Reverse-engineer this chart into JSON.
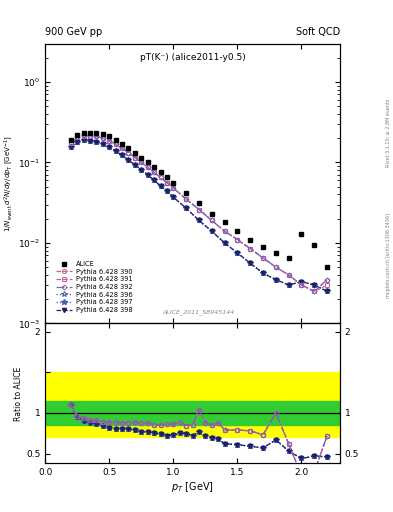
{
  "title_left": "900 GeV pp",
  "title_right": "Soft QCD",
  "plot_title": "pT(K⁻) (alice2011-y0.5)",
  "watermark": "ALICE_2011_S8945144",
  "right_label_top": "Rivet 3.1.10; ≥ 2.8M events",
  "right_label_bottom": "mcplots.cern.ch [arXiv:1306.3436]",
  "ylabel_top": "1/N_{event} d²N/dy/dp_T [GeV⁻¹]",
  "ylabel_bottom": "Ratio to ALICE",
  "xlabel": "p_T [GeV]",
  "xlim": [
    0,
    2.3
  ],
  "alice_pt": [
    0.2,
    0.25,
    0.3,
    0.35,
    0.4,
    0.45,
    0.5,
    0.55,
    0.6,
    0.65,
    0.7,
    0.75,
    0.8,
    0.85,
    0.9,
    0.95,
    1.0,
    1.1,
    1.2,
    1.3,
    1.4,
    1.5,
    1.6,
    1.7,
    1.8,
    1.9,
    2.0,
    2.1,
    2.2
  ],
  "alice_val": [
    0.19,
    0.22,
    0.23,
    0.235,
    0.23,
    0.225,
    0.21,
    0.19,
    0.17,
    0.15,
    0.13,
    0.115,
    0.1,
    0.088,
    0.076,
    0.065,
    0.056,
    0.042,
    0.031,
    0.023,
    0.018,
    0.014,
    0.011,
    0.009,
    0.0075,
    0.0065,
    0.013,
    0.0095,
    0.005
  ],
  "pythia_pt": [
    0.2,
    0.25,
    0.3,
    0.35,
    0.4,
    0.45,
    0.5,
    0.55,
    0.6,
    0.65,
    0.7,
    0.75,
    0.8,
    0.85,
    0.9,
    0.95,
    1.0,
    1.1,
    1.2,
    1.3,
    1.4,
    1.5,
    1.6,
    1.7,
    1.8,
    1.9,
    2.0,
    2.1,
    2.2
  ],
  "p390_val": [
    0.175,
    0.205,
    0.215,
    0.215,
    0.21,
    0.2,
    0.185,
    0.168,
    0.15,
    0.132,
    0.115,
    0.1,
    0.087,
    0.075,
    0.065,
    0.056,
    0.048,
    0.035,
    0.026,
    0.019,
    0.014,
    0.011,
    0.0085,
    0.0065,
    0.005,
    0.004,
    0.003,
    0.0025,
    0.0035
  ],
  "p391_val": [
    0.175,
    0.205,
    0.215,
    0.215,
    0.21,
    0.2,
    0.185,
    0.168,
    0.15,
    0.132,
    0.115,
    0.1,
    0.087,
    0.075,
    0.065,
    0.056,
    0.048,
    0.035,
    0.026,
    0.019,
    0.014,
    0.011,
    0.0085,
    0.0065,
    0.005,
    0.004,
    0.003,
    0.0025,
    0.003
  ],
  "p392_val": [
    0.175,
    0.205,
    0.215,
    0.215,
    0.21,
    0.2,
    0.185,
    0.168,
    0.15,
    0.132,
    0.115,
    0.1,
    0.087,
    0.075,
    0.065,
    0.056,
    0.048,
    0.035,
    0.026,
    0.019,
    0.014,
    0.011,
    0.0085,
    0.0065,
    0.005,
    0.004,
    0.003,
    0.0025,
    0.0035
  ],
  "p396_val": [
    0.155,
    0.18,
    0.19,
    0.185,
    0.18,
    0.168,
    0.155,
    0.138,
    0.122,
    0.107,
    0.093,
    0.081,
    0.07,
    0.06,
    0.051,
    0.044,
    0.037,
    0.027,
    0.019,
    0.014,
    0.01,
    0.0075,
    0.0056,
    0.0042,
    0.0035,
    0.003,
    0.0033,
    0.003,
    0.0025
  ],
  "p397_val": [
    0.155,
    0.18,
    0.19,
    0.185,
    0.18,
    0.168,
    0.155,
    0.138,
    0.122,
    0.107,
    0.093,
    0.081,
    0.07,
    0.06,
    0.051,
    0.044,
    0.037,
    0.027,
    0.019,
    0.014,
    0.01,
    0.0075,
    0.0056,
    0.0042,
    0.0035,
    0.003,
    0.0033,
    0.003,
    0.0025
  ],
  "p398_val": [
    0.155,
    0.18,
    0.19,
    0.185,
    0.18,
    0.168,
    0.155,
    0.138,
    0.122,
    0.107,
    0.093,
    0.081,
    0.07,
    0.06,
    0.051,
    0.044,
    0.037,
    0.027,
    0.019,
    0.014,
    0.01,
    0.0075,
    0.0056,
    0.0042,
    0.0035,
    0.003,
    0.0033,
    0.003,
    0.0025
  ],
  "color_390": "#c060a0",
  "color_391": "#c060a0",
  "color_392": "#8060b0",
  "color_396": "#4060b0",
  "color_397": "#4060b0",
  "color_398": "#202060",
  "band_yellow": [
    0.7,
    1.5
  ],
  "band_green": [
    0.85,
    1.15
  ],
  "ratio_upper_pt": [
    0.2,
    0.25,
    0.3,
    0.35,
    0.4,
    0.45,
    0.5,
    0.55,
    0.6,
    0.65,
    0.7,
    0.75,
    0.8,
    0.85,
    0.9,
    0.95,
    1.0,
    1.05,
    1.1,
    1.15,
    1.2,
    1.25,
    1.3,
    1.35,
    1.4,
    1.5,
    1.6,
    1.7,
    1.8,
    1.9,
    2.0,
    2.1,
    2.2
  ],
  "ratio_upper": [
    1.1,
    0.96,
    0.935,
    0.915,
    0.91,
    0.89,
    0.885,
    0.885,
    0.88,
    0.88,
    0.885,
    0.875,
    0.875,
    0.855,
    0.855,
    0.862,
    0.86,
    0.89,
    0.845,
    0.855,
    1.04,
    0.88,
    0.85,
    0.88,
    0.79,
    0.79,
    0.78,
    0.73,
    1.0,
    0.62,
    0.23,
    0.27,
    0.72
  ],
  "ratio_lower_pt": [
    0.2,
    0.25,
    0.3,
    0.35,
    0.4,
    0.45,
    0.5,
    0.55,
    0.6,
    0.65,
    0.7,
    0.75,
    0.8,
    0.85,
    0.9,
    0.95,
    1.0,
    1.05,
    1.1,
    1.15,
    1.2,
    1.25,
    1.3,
    1.35,
    1.4,
    1.5,
    1.6,
    1.7,
    1.8,
    1.9,
    2.0,
    2.1,
    2.2
  ],
  "ratio_lower": [
    1.1,
    0.95,
    0.9,
    0.875,
    0.865,
    0.84,
    0.81,
    0.8,
    0.8,
    0.8,
    0.785,
    0.765,
    0.768,
    0.75,
    0.74,
    0.72,
    0.725,
    0.75,
    0.745,
    0.72,
    0.77,
    0.72,
    0.69,
    0.68,
    0.62,
    0.61,
    0.59,
    0.57,
    0.67,
    0.53,
    0.44,
    0.47,
    0.46
  ]
}
